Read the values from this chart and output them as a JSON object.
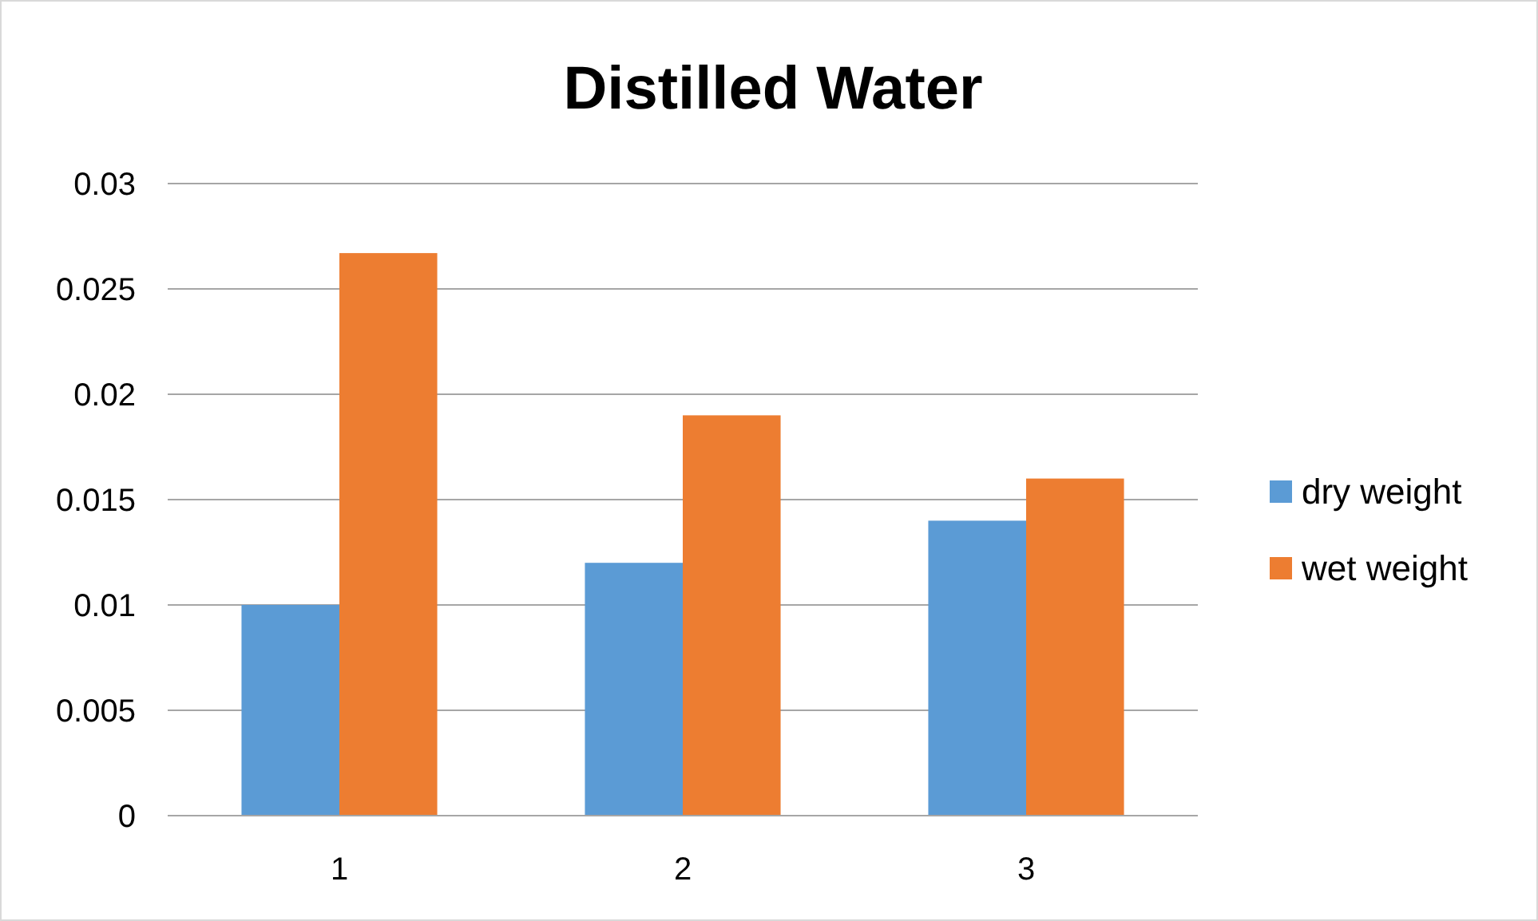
{
  "chart_data": {
    "type": "bar",
    "title": "Distilled Water",
    "categories": [
      "1",
      "2",
      "3"
    ],
    "series": [
      {
        "name": "dry weight",
        "color": "#5b9bd5",
        "values": [
          0.01,
          0.012,
          0.014
        ]
      },
      {
        "name": "wet weight",
        "color": "#ed7d31",
        "values": [
          0.0267,
          0.019,
          0.016
        ]
      }
    ],
    "ylim": [
      0,
      0.03
    ],
    "yticks": [
      0,
      0.005,
      0.01,
      0.015,
      0.02,
      0.025,
      0.03
    ],
    "grid": "y",
    "legend": "right"
  }
}
